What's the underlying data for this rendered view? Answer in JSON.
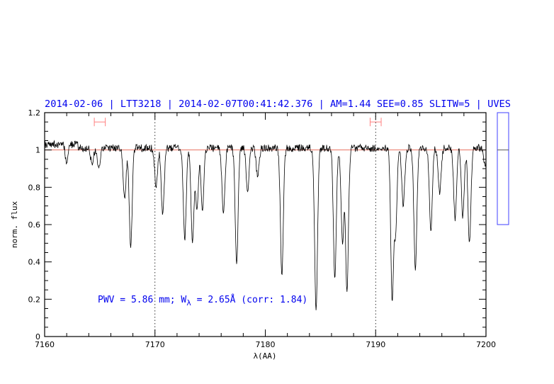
{
  "chart_data": {
    "type": "line",
    "title": "2014-02-06 | LTT3218 | 2014-02-07T00:41:42.376 | AM=1.44  SEE=0.85  SLITW=5 | UVES",
    "xlabel": "λ(AA)",
    "ylabel": "norm. flux",
    "xlim": [
      7160,
      7200
    ],
    "ylim": [
      0,
      1.2
    ],
    "x_ticks": [
      7160,
      7170,
      7180,
      7190,
      7200
    ],
    "y_ticks": [
      0,
      0.2,
      0.4,
      0.6,
      0.8,
      1,
      1.2
    ],
    "y_tick_labels": [
      "0",
      "0.2",
      "0.4",
      "0.6",
      "0.8",
      "1",
      "1.2"
    ],
    "grid": false,
    "reference_line_y": 1,
    "reference_line_color": "#e87060",
    "dotted_vertical_lines_x": [
      7170,
      7190
    ],
    "annotation": {
      "prefix": "PWV = 5.86 mm; W",
      "subscript": "λ",
      "suffix": " = 2.65Å (corr: 1.84)"
    },
    "range_markers": [
      {
        "x_start": 7164.5,
        "x_end": 7165.5,
        "y": 1.15
      },
      {
        "x_start": 7189.5,
        "x_end": 7190.5,
        "y": 1.15
      }
    ],
    "range_marker_color": "#ff8080",
    "series": [
      {
        "color": "#000000",
        "continuum": 1.01,
        "absorption_minima": [
          [
            7162.0,
            0.92
          ],
          [
            7164.3,
            0.93
          ],
          [
            7164.9,
            0.9
          ],
          [
            7167.25,
            0.74
          ],
          [
            7167.8,
            0.48
          ],
          [
            7170.1,
            0.8
          ],
          [
            7170.7,
            0.65
          ],
          [
            7172.7,
            0.52
          ],
          [
            7173.4,
            0.5
          ],
          [
            7173.8,
            0.68
          ],
          [
            7174.3,
            0.68
          ],
          [
            7176.2,
            0.66
          ],
          [
            7177.4,
            0.39
          ],
          [
            7178.4,
            0.78
          ],
          [
            7179.3,
            0.86
          ],
          [
            7181.5,
            0.33
          ],
          [
            7184.6,
            0.14
          ],
          [
            7186.3,
            0.31
          ],
          [
            7187.0,
            0.5
          ],
          [
            7187.4,
            0.24
          ],
          [
            7191.5,
            0.19
          ],
          [
            7191.8,
            0.56
          ],
          [
            7192.5,
            0.7
          ],
          [
            7193.6,
            0.35
          ],
          [
            7195.0,
            0.56
          ],
          [
            7195.8,
            0.77
          ],
          [
            7197.2,
            0.63
          ],
          [
            7197.9,
            0.64
          ],
          [
            7198.5,
            0.5
          ],
          [
            7199.9,
            0.92
          ]
        ]
      }
    ],
    "side_panel": {
      "ylim": [
        0.6,
        1.2
      ],
      "level": 1,
      "border_color": "#4040ff"
    }
  }
}
